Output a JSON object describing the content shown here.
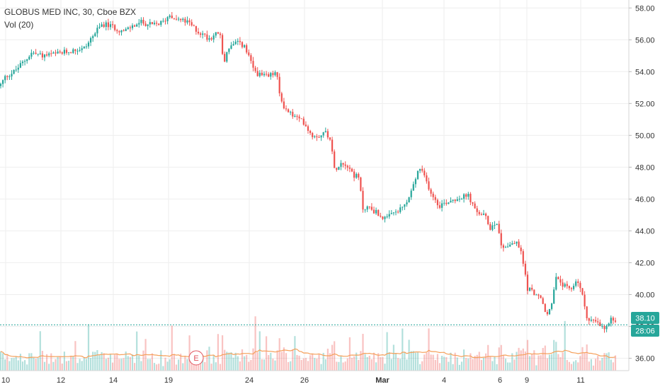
{
  "header": {
    "title": "GLOBUS MED INC, 30, Cboe BZX",
    "volume_label": "Vol (20)"
  },
  "price_tag": {
    "value": "38.10",
    "color": "#26a69a"
  },
  "timer_tag": {
    "value": "28:06",
    "color": "#26a69a"
  },
  "earnings_marker": {
    "label": "E",
    "color": "#e0515b"
  },
  "colors": {
    "up": "#26a69a",
    "down": "#ef5350",
    "volume_ma": "#f5a05a",
    "grid": "#eeeeee"
  },
  "chart_data": {
    "type": "candlestick",
    "y_axis": {
      "range": [
        35.2,
        58.7
      ],
      "ticks": [
        "36.00",
        "38.00",
        "40.00",
        "42.00",
        "44.00",
        "46.00",
        "48.00",
        "50.00",
        "52.00",
        "54.00",
        "56.00",
        "58.00"
      ]
    },
    "x_axis": {
      "ticks": [
        "10",
        "12",
        "14",
        "19",
        "24",
        "26",
        "Mar",
        "4",
        "6",
        "9",
        "11"
      ]
    },
    "price_path": [
      [
        0,
        53.1
      ],
      [
        8,
        53.7
      ],
      [
        20,
        54.0
      ],
      [
        35,
        54.7
      ],
      [
        45,
        55.2
      ],
      [
        60,
        55.0
      ],
      [
        80,
        55.1
      ],
      [
        100,
        55.3
      ],
      [
        120,
        55.5
      ],
      [
        130,
        56.2
      ],
      [
        145,
        57.0
      ],
      [
        160,
        56.8
      ],
      [
        175,
        56.5
      ],
      [
        185,
        56.8
      ],
      [
        200,
        57.1
      ],
      [
        215,
        56.9
      ],
      [
        230,
        57.1
      ],
      [
        240,
        57.6
      ],
      [
        250,
        57.3
      ],
      [
        265,
        57.1
      ],
      [
        280,
        56.5
      ],
      [
        295,
        56.1
      ],
      [
        310,
        56.5
      ],
      [
        316,
        54.5
      ],
      [
        322,
        55.5
      ],
      [
        335,
        55.8
      ],
      [
        345,
        55.6
      ],
      [
        352,
        54.8
      ],
      [
        360,
        54.0
      ],
      [
        370,
        53.7
      ],
      [
        380,
        53.7
      ],
      [
        390,
        54.0
      ],
      [
        395,
        52.5
      ],
      [
        402,
        51.7
      ],
      [
        412,
        51.3
      ],
      [
        422,
        51.0
      ],
      [
        430,
        50.8
      ],
      [
        440,
        50.0
      ],
      [
        450,
        50.0
      ],
      [
        460,
        50.2
      ],
      [
        467,
        49.8
      ],
      [
        472,
        47.8
      ],
      [
        480,
        48.3
      ],
      [
        490,
        48.2
      ],
      [
        500,
        47.5
      ],
      [
        507,
        47.3
      ],
      [
        512,
        45.4
      ],
      [
        520,
        45.5
      ],
      [
        530,
        45.2
      ],
      [
        545,
        44.7
      ],
      [
        555,
        45.1
      ],
      [
        565,
        45.3
      ],
      [
        575,
        45.8
      ],
      [
        585,
        47.0
      ],
      [
        592,
        48.0
      ],
      [
        600,
        47.3
      ],
      [
        610,
        46.3
      ],
      [
        620,
        45.6
      ],
      [
        630,
        45.8
      ],
      [
        640,
        46.0
      ],
      [
        650,
        46.1
      ],
      [
        662,
        46.2
      ],
      [
        670,
        45.3
      ],
      [
        685,
        44.9
      ],
      [
        692,
        44.2
      ],
      [
        702,
        44.6
      ],
      [
        708,
        43.0
      ],
      [
        718,
        43.1
      ],
      [
        728,
        43.3
      ],
      [
        735,
        42.8
      ],
      [
        740,
        41.7
      ],
      [
        745,
        40.4
      ],
      [
        755,
        40.1
      ],
      [
        765,
        39.6
      ],
      [
        772,
        38.6
      ],
      [
        778,
        39.3
      ],
      [
        785,
        41.0
      ],
      [
        795,
        40.6
      ],
      [
        805,
        40.2
      ],
      [
        815,
        41.0
      ],
      [
        823,
        39.8
      ],
      [
        830,
        38.4
      ],
      [
        840,
        38.3
      ],
      [
        848,
        38.0
      ],
      [
        855,
        37.8
      ],
      [
        862,
        38.4
      ],
      [
        870,
        38.1
      ]
    ]
  }
}
